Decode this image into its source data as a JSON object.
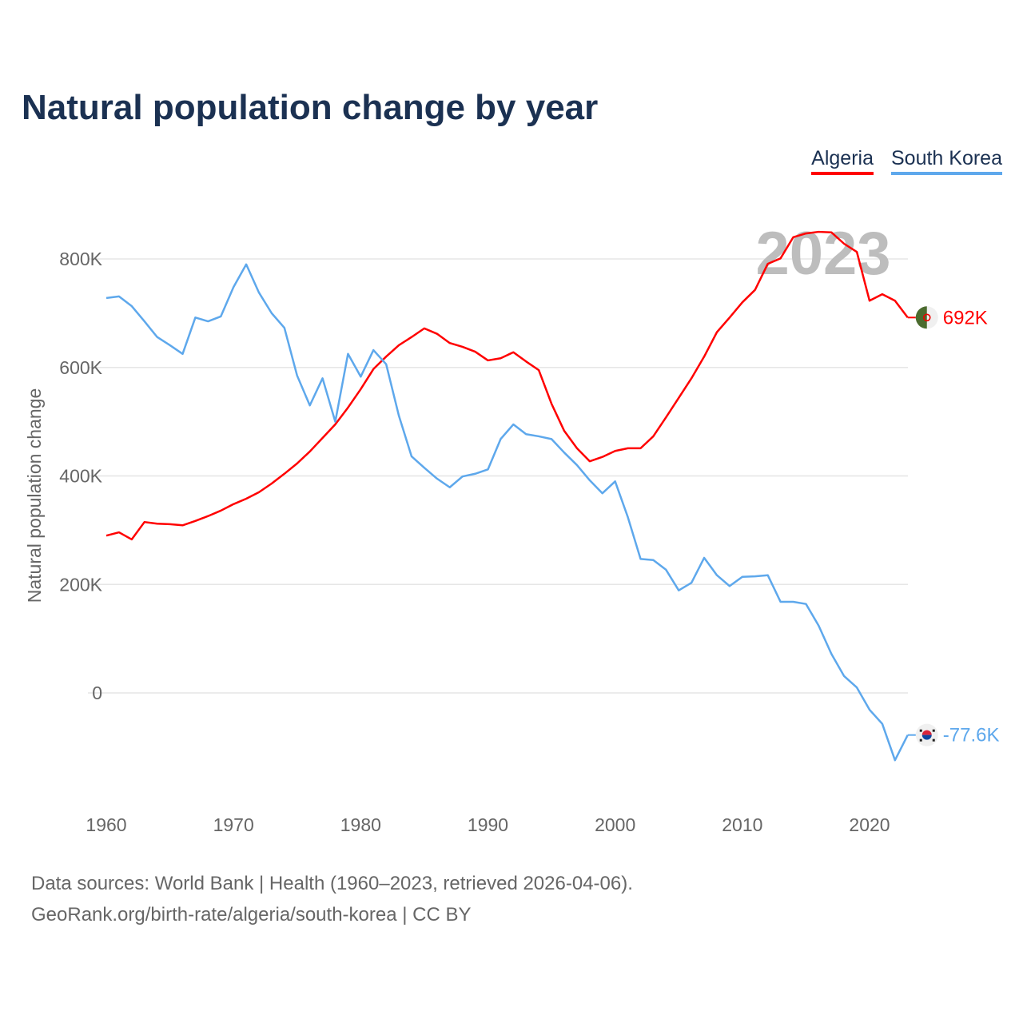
{
  "title": "Natural population change by year",
  "footer": {
    "line1": "Data sources: World Bank | Health (1960–2023, retrieved 2026-04-06).",
    "line2": "GeoRank.org/birth-rate/algeria/south-korea | CC BY"
  },
  "chart_data": {
    "type": "line",
    "title": "Natural population change by year",
    "xlabel": "",
    "ylabel": "Natural population change",
    "year_label": "2023",
    "xlim": [
      1960,
      2023
    ],
    "ylim": [
      -200000,
      900000
    ],
    "x_ticks": [
      1960,
      1970,
      1980,
      1990,
      2000,
      2010,
      2020
    ],
    "y_ticks": [
      0,
      200000,
      400000,
      600000,
      800000
    ],
    "y_tick_labels": [
      "0",
      "200K",
      "400K",
      "600K",
      "800K"
    ],
    "x_tick_labels": [
      "1960",
      "1970",
      "1980",
      "1990",
      "2000",
      "2010",
      "2020"
    ],
    "legend_position": "top-right",
    "grid": true,
    "series": [
      {
        "name": "Algeria",
        "color": "#ff0000",
        "end_label": "692K",
        "flag": "algeria-flag",
        "values": [
          290,
          296,
          283,
          315,
          312,
          311,
          309,
          317,
          326,
          336,
          348,
          358,
          370,
          386,
          404,
          423,
          445,
          470,
          495,
          526,
          560,
          597,
          620,
          641,
          656,
          672,
          662,
          645,
          638,
          629,
          613,
          617,
          628,
          611,
          595,
          533,
          483,
          451,
          427,
          435,
          446,
          451,
          451,
          473,
          508,
          544,
          580,
          620,
          665,
          692,
          720,
          743,
          791,
          801,
          840,
          847,
          850,
          849,
          828,
          813,
          723,
          735,
          723,
          692
        ]
      },
      {
        "name": "South Korea",
        "color": "#5ea8ec",
        "end_label": "-77.6K",
        "flag": "south-korea-flag",
        "values": [
          728,
          731,
          713,
          685,
          656,
          641,
          625,
          692,
          685,
          694,
          748,
          790,
          738,
          700,
          673,
          585,
          530,
          580,
          500,
          625,
          583,
          632,
          606,
          511,
          436,
          415,
          395,
          379,
          399,
          404,
          412,
          468,
          495,
          477,
          473,
          468,
          443,
          420,
          392,
          368,
          390,
          324,
          247,
          245,
          227,
          189,
          203,
          249,
          217,
          197,
          214,
          215,
          217,
          168,
          168,
          164,
          124,
          72,
          31,
          10,
          -31,
          -57,
          -124,
          -77.6
        ]
      }
    ],
    "value_unit": "thousands"
  }
}
